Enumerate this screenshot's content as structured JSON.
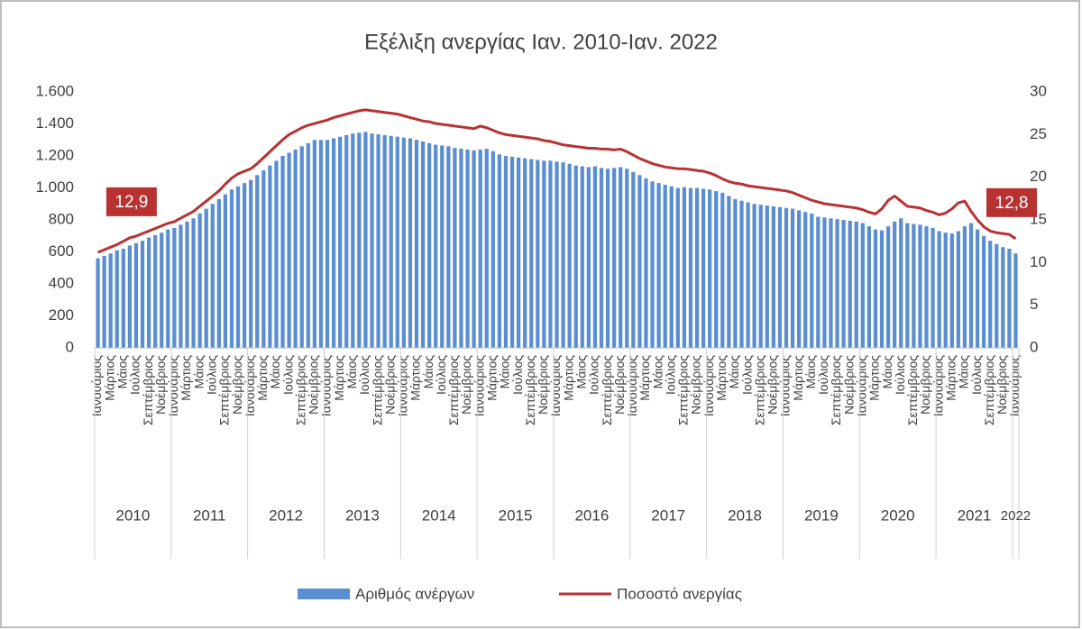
{
  "chart_data": {
    "type": "bar_line",
    "title": "Εξέλιξη ανεργίας Ιαν. 2010-Ιαν. 2022",
    "categories": [
      "Ιανουάριος",
      null,
      "Μάρτιος",
      null,
      "Μάιος",
      null,
      "Ιούλιος",
      null,
      "Σεπτέμβριος",
      null,
      "Νοέμβριος",
      null,
      "Ιανουάριος",
      null,
      "Μάρτιος",
      null,
      "Μάιος",
      null,
      "Ιούλιος",
      null,
      "Σεπτέμβριος",
      null,
      "Νοέμβριος",
      null,
      "Ιανουάριος",
      null,
      "Μάρτιος",
      null,
      "Μάιος",
      null,
      "Ιούλιος",
      null,
      "Σεπτέμβριος",
      null,
      "Νοέμβριος",
      null,
      "Ιανουάριος",
      null,
      "Μάρτιος",
      null,
      "Μάιος",
      null,
      "Ιούλιος",
      null,
      "Σεπτέμβριος",
      null,
      "Νοέμβριος",
      null,
      "Ιανουάριος",
      null,
      "Μάρτιος",
      null,
      "Μάιος",
      null,
      "Ιούλιος",
      null,
      "Σεπτέμβριος",
      null,
      "Νοέμβριος",
      null,
      "Ιανουάριος",
      null,
      "Μάρτιος",
      null,
      "Μάιος",
      null,
      "Ιούλιος",
      null,
      "Σεπτέμβριος",
      null,
      "Νοέμβριος",
      null,
      "Ιανουάριος",
      null,
      "Μάρτιος",
      null,
      "Μάιος",
      null,
      "Ιούλιος",
      null,
      "Σεπτέμβριος",
      null,
      "Νοέμβριος",
      null,
      "Ιανουάριος",
      null,
      "Μάρτιος",
      null,
      "Μάιος",
      null,
      "Ιούλιος",
      null,
      "Σεπτέμβριος",
      null,
      "Νοέμβριος",
      null,
      "Ιανουάριος",
      null,
      "Μάρτιος",
      null,
      "Μάιος",
      null,
      "Ιούλιος",
      null,
      "Σεπτέμβριος",
      null,
      "Νοέμβριος",
      null,
      "Ιανουάριος",
      null,
      "Μάρτιος",
      null,
      "Μάιος",
      null,
      "Ιούλιος",
      null,
      "Σεπτέμβριος",
      null,
      "Νοέμβριος",
      null,
      "Ιανουάριος",
      null,
      "Μάρτιος",
      null,
      "Μάιος",
      null,
      "Ιούλιος",
      null,
      "Σεπτέμβριος",
      null,
      "Νοέμβριος",
      null,
      "Ιανουάριος",
      null,
      "Μάρτιος",
      null,
      "Μάιος",
      null,
      "Ιούλιος",
      null,
      "Σεπτέμβριος",
      null,
      "Νοέμβριος",
      null,
      "Ιανουάριος"
    ],
    "year_groups": [
      "2010",
      "2011",
      "2012",
      "2013",
      "2014",
      "2015",
      "2016",
      "2017",
      "2018",
      "2019",
      "2020",
      "2021",
      "2022"
    ],
    "series": [
      {
        "name": "Αριθμός ανέργων",
        "type": "bar",
        "color": "#5a8ed1",
        "values": [
          560,
          575,
          590,
          610,
          620,
          640,
          655,
          670,
          690,
          705,
          720,
          740,
          750,
          770,
          790,
          810,
          840,
          870,
          900,
          930,
          960,
          990,
          1010,
          1030,
          1050,
          1080,
          1110,
          1140,
          1170,
          1200,
          1220,
          1240,
          1260,
          1280,
          1300,
          1300,
          1300,
          1310,
          1320,
          1330,
          1340,
          1345,
          1350,
          1340,
          1335,
          1330,
          1325,
          1320,
          1315,
          1310,
          1300,
          1290,
          1280,
          1270,
          1265,
          1260,
          1250,
          1245,
          1240,
          1235,
          1240,
          1245,
          1230,
          1210,
          1200,
          1195,
          1190,
          1185,
          1180,
          1175,
          1170,
          1170,
          1165,
          1160,
          1150,
          1140,
          1135,
          1130,
          1135,
          1125,
          1120,
          1125,
          1130,
          1120,
          1100,
          1080,
          1060,
          1040,
          1030,
          1020,
          1010,
          1000,
          1005,
          1000,
          1000,
          995,
          990,
          980,
          970,
          950,
          930,
          920,
          910,
          900,
          895,
          890,
          885,
          880,
          875,
          870,
          860,
          850,
          840,
          820,
          815,
          810,
          805,
          800,
          795,
          790,
          780,
          760,
          740,
          735,
          760,
          790,
          810,
          780,
          775,
          770,
          760,
          750,
          730,
          720,
          715,
          730,
          760,
          780,
          740,
          700,
          670,
          650,
          630,
          620,
          590
        ]
      },
      {
        "name": "Ποσοστό ανεργίας",
        "type": "line",
        "axis": "y2",
        "color": "#b83232",
        "values": [
          11.2,
          11.5,
          11.8,
          12.1,
          12.5,
          12.9,
          13.1,
          13.4,
          13.7,
          14.0,
          14.3,
          14.6,
          14.8,
          15.2,
          15.6,
          16.0,
          16.6,
          17.2,
          17.8,
          18.4,
          19.2,
          19.9,
          20.4,
          20.7,
          21.0,
          21.6,
          22.3,
          23.0,
          23.7,
          24.4,
          25.0,
          25.4,
          25.8,
          26.1,
          26.3,
          26.5,
          26.7,
          27.0,
          27.2,
          27.4,
          27.6,
          27.8,
          27.9,
          27.8,
          27.7,
          27.6,
          27.5,
          27.4,
          27.2,
          27.0,
          26.8,
          26.6,
          26.5,
          26.3,
          26.2,
          26.1,
          26.0,
          25.9,
          25.8,
          25.7,
          26.0,
          25.8,
          25.5,
          25.2,
          25.0,
          24.9,
          24.8,
          24.7,
          24.6,
          24.5,
          24.3,
          24.2,
          24.0,
          23.8,
          23.7,
          23.6,
          23.5,
          23.4,
          23.4,
          23.3,
          23.3,
          23.2,
          23.3,
          23.0,
          22.6,
          22.2,
          21.9,
          21.6,
          21.4,
          21.2,
          21.1,
          21.0,
          21.0,
          20.9,
          20.8,
          20.7,
          20.5,
          20.2,
          19.8,
          19.5,
          19.3,
          19.2,
          19.0,
          18.9,
          18.8,
          18.7,
          18.6,
          18.5,
          18.4,
          18.2,
          17.9,
          17.6,
          17.3,
          17.1,
          16.9,
          16.8,
          16.7,
          16.6,
          16.5,
          16.4,
          16.2,
          15.9,
          15.7,
          16.3,
          17.3,
          17.8,
          17.2,
          16.6,
          16.5,
          16.4,
          16.1,
          15.9,
          15.6,
          15.8,
          16.3,
          17.0,
          17.2,
          16.0,
          15.0,
          14.2,
          13.7,
          13.5,
          13.4,
          13.3,
          12.8
        ],
        "value_labels": [
          null,
          null,
          null,
          null,
          null,
          "12,9",
          null,
          null,
          null,
          null,
          null,
          null,
          null,
          null,
          null,
          null,
          null,
          null,
          null,
          null,
          null,
          null,
          null,
          null,
          null,
          null,
          null,
          null,
          null,
          null,
          null,
          null,
          null,
          null,
          null,
          null,
          null,
          null,
          null,
          null,
          null,
          null,
          null,
          null,
          null,
          null,
          null,
          null,
          null,
          null,
          null,
          null,
          null,
          null,
          null,
          null,
          null,
          null,
          null,
          null,
          null,
          null,
          null,
          null,
          null,
          null,
          null,
          null,
          null,
          null,
          null,
          null,
          null,
          null,
          null,
          null,
          null,
          null,
          null,
          null,
          null,
          null,
          null,
          null,
          null,
          null,
          null,
          null,
          null,
          null,
          null,
          null,
          null,
          null,
          null,
          null,
          null,
          null,
          null,
          null,
          null,
          null,
          null,
          null,
          null,
          null,
          null,
          null,
          null,
          null,
          null,
          null,
          null,
          null,
          null,
          null,
          null,
          null,
          null,
          null,
          null,
          null,
          null,
          null,
          null,
          null,
          null,
          null,
          null,
          null,
          null,
          null,
          null,
          null,
          null,
          null,
          null,
          null,
          null,
          null,
          null,
          null,
          null,
          null,
          "12,8"
        ]
      }
    ],
    "ylim": [
      0,
      1600
    ],
    "yticks": [
      0,
      200,
      400,
      600,
      800,
      {
        "value": 1000,
        "label": "1.000"
      },
      {
        "value": 1200,
        "label": "1.200"
      },
      {
        "value": 1400,
        "label": "1.400"
      },
      {
        "value": 1600,
        "label": "1.600"
      }
    ],
    "y2lim": [
      0,
      30
    ],
    "y2ticks": [
      0,
      5,
      10,
      15,
      20,
      25,
      30
    ],
    "grid": false,
    "legend": "bottom"
  }
}
